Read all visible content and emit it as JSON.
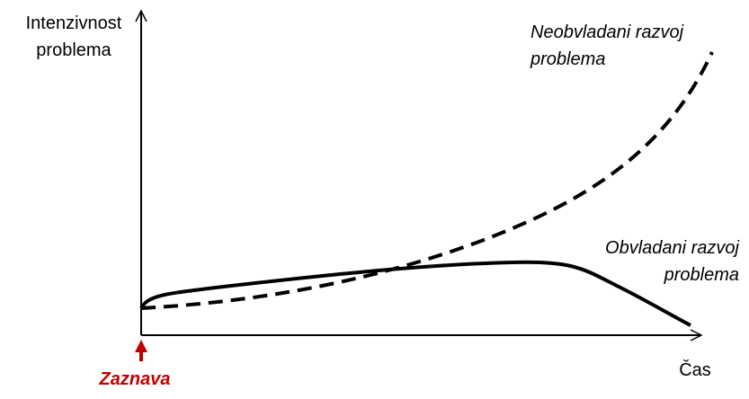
{
  "y_axis": {
    "label": [
      "Intenzivnost",
      "problema"
    ]
  },
  "x_axis": {
    "label": "Čas"
  },
  "curves": [
    {
      "label": [
        "Neobvladani razvoj",
        "problema"
      ]
    },
    {
      "label": [
        "Obvladani razvoj",
        "problema"
      ]
    }
  ],
  "marker": {
    "label": "Zaznava"
  }
}
